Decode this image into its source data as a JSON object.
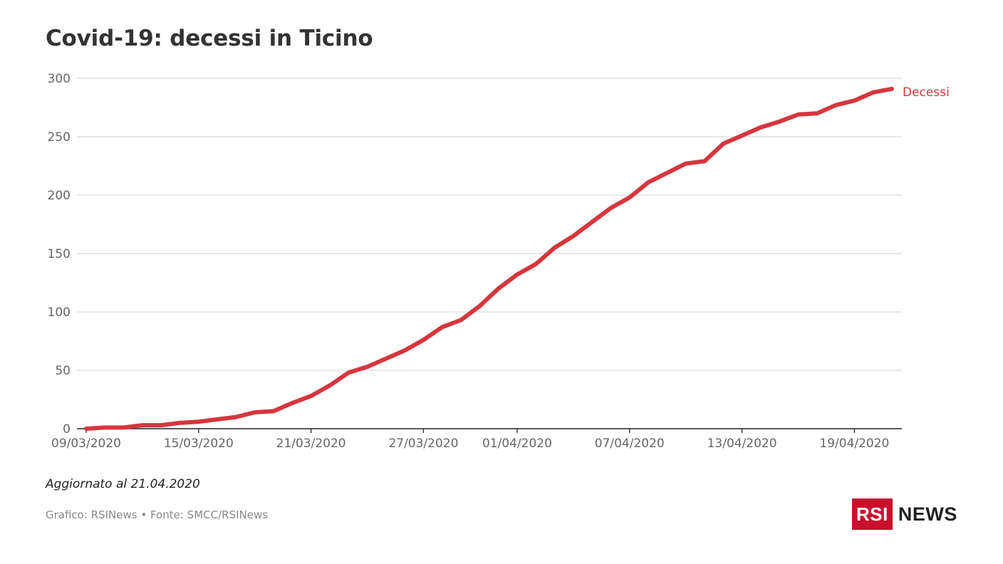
{
  "title": "Covid-19: decessi in Ticino",
  "note": "Aggiornato al 21.04.2020",
  "source": "Grafico: RSINews • Fonte: SMCC/RSINews",
  "logo": {
    "box": "RSI",
    "text": "NEWS"
  },
  "colors": {
    "line": "#d6363f",
    "grid": "#d9d9d9",
    "axis": "#222222",
    "tick": "#666666",
    "brand": "#c8102e"
  },
  "chart_data": {
    "type": "line",
    "title": "Covid-19: decessi in Ticino",
    "xlabel": "",
    "ylabel": "",
    "ylim": [
      0,
      300
    ],
    "yticks": [
      0,
      50,
      100,
      150,
      200,
      250,
      300
    ],
    "grid": true,
    "x_tick_labels": [
      "09/03/2020",
      "15/03/2020",
      "21/03/2020",
      "27/03/2020",
      "01/04/2020",
      "07/04/2020",
      "13/04/2020",
      "19/04/2020"
    ],
    "x": [
      "09/03/2020",
      "10/03/2020",
      "11/03/2020",
      "12/03/2020",
      "13/03/2020",
      "14/03/2020",
      "15/03/2020",
      "16/03/2020",
      "17/03/2020",
      "18/03/2020",
      "19/03/2020",
      "20/03/2020",
      "21/03/2020",
      "22/03/2020",
      "23/03/2020",
      "24/03/2020",
      "25/03/2020",
      "26/03/2020",
      "27/03/2020",
      "28/03/2020",
      "29/03/2020",
      "30/03/2020",
      "31/03/2020",
      "01/04/2020",
      "02/04/2020",
      "03/04/2020",
      "04/04/2020",
      "05/04/2020",
      "06/04/2020",
      "07/04/2020",
      "08/04/2020",
      "09/04/2020",
      "10/04/2020",
      "11/04/2020",
      "12/04/2020",
      "13/04/2020",
      "14/04/2020",
      "15/04/2020",
      "16/04/2020",
      "17/04/2020",
      "18/04/2020",
      "19/04/2020",
      "20/04/2020",
      "21/04/2020"
    ],
    "series": [
      {
        "name": "Decessi",
        "values": [
          0,
          1,
          1,
          3,
          3,
          5,
          6,
          8,
          10,
          14,
          15,
          22,
          28,
          37,
          48,
          53,
          60,
          67,
          76,
          87,
          93,
          105,
          120,
          132,
          141,
          155,
          165,
          177,
          189,
          198,
          211,
          219,
          227,
          229,
          244,
          251,
          258,
          263,
          269,
          270,
          277,
          281,
          288,
          291
        ]
      }
    ]
  }
}
